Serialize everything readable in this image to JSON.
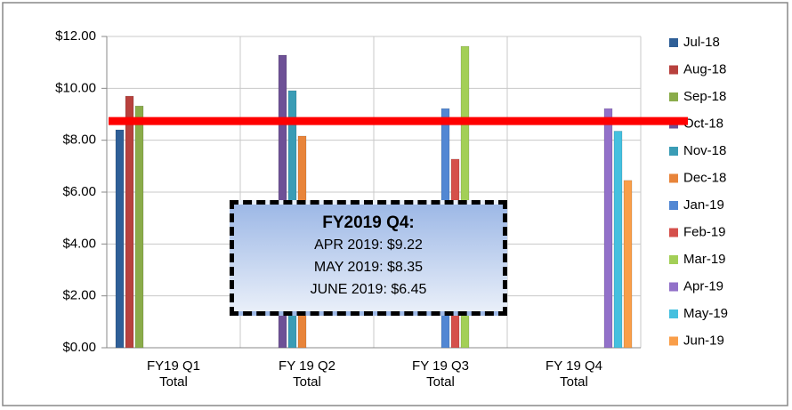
{
  "chart_data": {
    "type": "bar",
    "categories": [
      "FY19 Q1 Total",
      "FY 19 Q2 Total",
      "FY 19 Q3 Total",
      "FY 19 Q4 Total"
    ],
    "series": [
      {
        "name": "Jul-18",
        "color": "#2f5f97",
        "values": [
          8.4,
          null,
          null,
          null
        ]
      },
      {
        "name": "Aug-18",
        "color": "#b8413d",
        "values": [
          9.7,
          null,
          null,
          null
        ]
      },
      {
        "name": "Sep-18",
        "color": "#8aac4a",
        "values": [
          9.32,
          null,
          null,
          null
        ]
      },
      {
        "name": "Oct-18",
        "color": "#6e5196",
        "values": [
          null,
          11.28,
          null,
          null
        ]
      },
      {
        "name": "Nov-18",
        "color": "#3a9cb5",
        "values": [
          null,
          9.91,
          null,
          null
        ]
      },
      {
        "name": "Dec-18",
        "color": "#e8843a",
        "values": [
          null,
          8.16,
          null,
          null
        ]
      },
      {
        "name": "Jan-19",
        "color": "#5287d3",
        "values": [
          null,
          null,
          9.22,
          null
        ]
      },
      {
        "name": "Feb-19",
        "color": "#d5504b",
        "values": [
          null,
          null,
          7.27,
          null
        ]
      },
      {
        "name": "Mar-19",
        "color": "#a3cf57",
        "values": [
          null,
          null,
          11.62,
          null
        ]
      },
      {
        "name": "Apr-19",
        "color": "#9271c9",
        "values": [
          null,
          null,
          null,
          9.22
        ]
      },
      {
        "name": "May-19",
        "color": "#45c0df",
        "values": [
          null,
          null,
          null,
          8.35
        ]
      },
      {
        "name": "Jun-19",
        "color": "#f99e49",
        "values": [
          null,
          null,
          null,
          6.45
        ]
      }
    ],
    "ylim": [
      0,
      12
    ],
    "yticks": [
      {
        "value": 0,
        "label": "$0.00"
      },
      {
        "value": 2,
        "label": "$2.00"
      },
      {
        "value": 4,
        "label": "$4.00"
      },
      {
        "value": 6,
        "label": "$6.00"
      },
      {
        "value": 8,
        "label": "$8.00"
      },
      {
        "value": 10,
        "label": "$10.00"
      },
      {
        "value": 12,
        "label": "$12.00"
      }
    ],
    "grid": true,
    "legend": "right",
    "reference_line": 8.74,
    "reference_color": "#ff0000",
    "annotation": {
      "title": "FY2019 Q4:",
      "lines": [
        "APR 2019: $9.22",
        "MAY 2019: $8.35",
        "JUNE 2019: $6.45"
      ]
    }
  }
}
